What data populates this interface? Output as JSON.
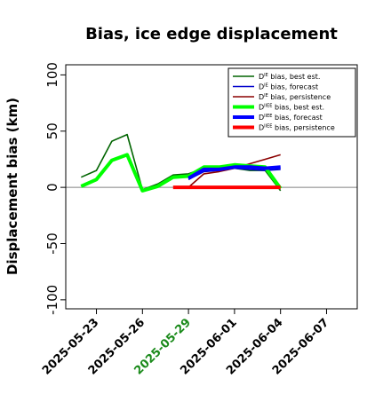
{
  "chart_data": {
    "type": "line",
    "title": "Bias, ice edge displacement",
    "xlabel": "",
    "ylabel": "Displacement bias (km)",
    "ylim": [
      -108,
      109
    ],
    "y_ticks": [
      -100,
      -50,
      0,
      50,
      100
    ],
    "xlim": [
      "2025-05-21",
      "2025-06-09"
    ],
    "x_ticks": [
      "2025-05-23",
      "2025-05-26",
      "2025-05-29",
      "2025-06-01",
      "2025-06-04",
      "2025-06-07"
    ],
    "highlight_tick": "2025-05-29",
    "highlight_color": "#1a8a1a",
    "grid": false,
    "reference_line": {
      "y": 0,
      "color": "#808080"
    },
    "legend_position": "top-right",
    "series": [
      {
        "name": "DIE bias, best est.",
        "legend_main": "D",
        "legend_sup": "IE",
        "legend_rest": " bias, best est.",
        "color": "#006400",
        "width": 1.6,
        "x": [
          "2025-05-22",
          "2025-05-23",
          "2025-05-24",
          "2025-05-25",
          "2025-05-26",
          "2025-05-27",
          "2025-05-28",
          "2025-05-29",
          "2025-05-30",
          "2025-05-31",
          "2025-06-01",
          "2025-06-02",
          "2025-06-03",
          "2025-06-04"
        ],
        "y": [
          9,
          15,
          41,
          47,
          -2,
          3,
          11,
          12,
          17,
          18,
          17,
          15,
          15,
          -3
        ]
      },
      {
        "name": "DIE bias, forecast",
        "legend_main": "D",
        "legend_sup": "IE",
        "legend_rest": " bias, forecast",
        "color": "#0000cc",
        "width": 1.6,
        "x": [
          "2025-05-29",
          "2025-05-30",
          "2025-05-31",
          "2025-06-01",
          "2025-06-02",
          "2025-06-03",
          "2025-06-04"
        ],
        "y": [
          7,
          14,
          15,
          17,
          16,
          15,
          16
        ]
      },
      {
        "name": "DIE bias, persistence",
        "legend_main": "D",
        "legend_sup": "IE",
        "legend_rest": " bias, persistence",
        "color": "#8b0000",
        "width": 1.6,
        "x": [
          "2025-05-29",
          "2025-05-30",
          "2025-05-31",
          "2025-06-01",
          "2025-06-02",
          "2025-06-03",
          "2025-06-04"
        ],
        "y": [
          0,
          12,
          14,
          17,
          21,
          25,
          29
        ]
      },
      {
        "name": "DIIEE bias, best est.",
        "legend_main": "D",
        "legend_sup": "IIEE",
        "legend_rest": " bias, best est.",
        "color": "#00ff00",
        "width": 4,
        "x": [
          "2025-05-22",
          "2025-05-23",
          "2025-05-24",
          "2025-05-25",
          "2025-05-26",
          "2025-05-27",
          "2025-05-28",
          "2025-05-29",
          "2025-05-30",
          "2025-05-31",
          "2025-06-01",
          "2025-06-02",
          "2025-06-03",
          "2025-06-04"
        ],
        "y": [
          1,
          7,
          24,
          29,
          -3,
          1,
          9,
          10,
          18,
          18,
          20,
          19,
          18,
          -1
        ]
      },
      {
        "name": "DIIEE bias, forecast",
        "legend_main": "D",
        "legend_sup": "IIEE",
        "legend_rest": " bias, forecast",
        "color": "#0000ff",
        "width": 4,
        "x": [
          "2025-05-29",
          "2025-05-30",
          "2025-05-31",
          "2025-06-01",
          "2025-06-02",
          "2025-06-03",
          "2025-06-04"
        ],
        "y": [
          8,
          16,
          16,
          18,
          18,
          17,
          18
        ]
      },
      {
        "name": "DIIEE bias, persistence",
        "legend_main": "D",
        "legend_sup": "IIEE",
        "legend_rest": " bias, persistence",
        "color": "#ff0000",
        "width": 4,
        "x": [
          "2025-05-28",
          "2025-05-29",
          "2025-05-30",
          "2025-05-31",
          "2025-06-01",
          "2025-06-02",
          "2025-06-03",
          "2025-06-04"
        ],
        "y": [
          0,
          0,
          0,
          0,
          0,
          0,
          0,
          0
        ]
      }
    ]
  }
}
